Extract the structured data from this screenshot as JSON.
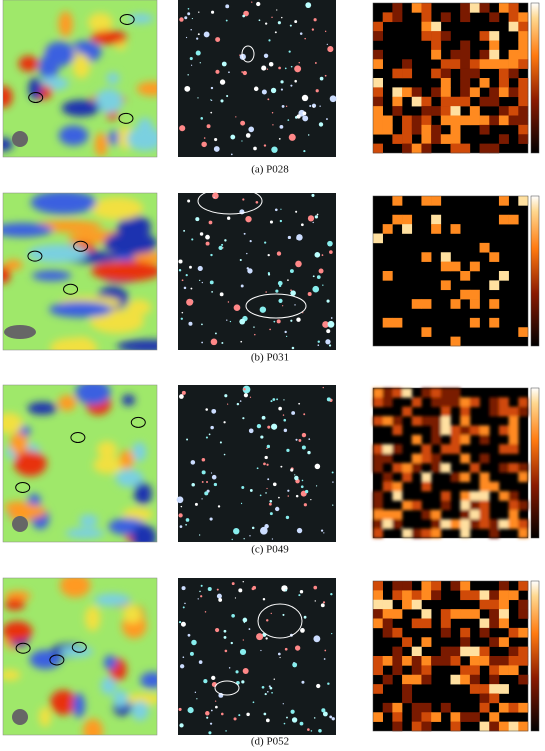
{
  "panels": [
    {
      "caption": "(a) P028"
    },
    {
      "caption": "(b) P031"
    },
    {
      "caption": "(c) P049"
    },
    {
      "caption": "(d) P052"
    }
  ]
}
